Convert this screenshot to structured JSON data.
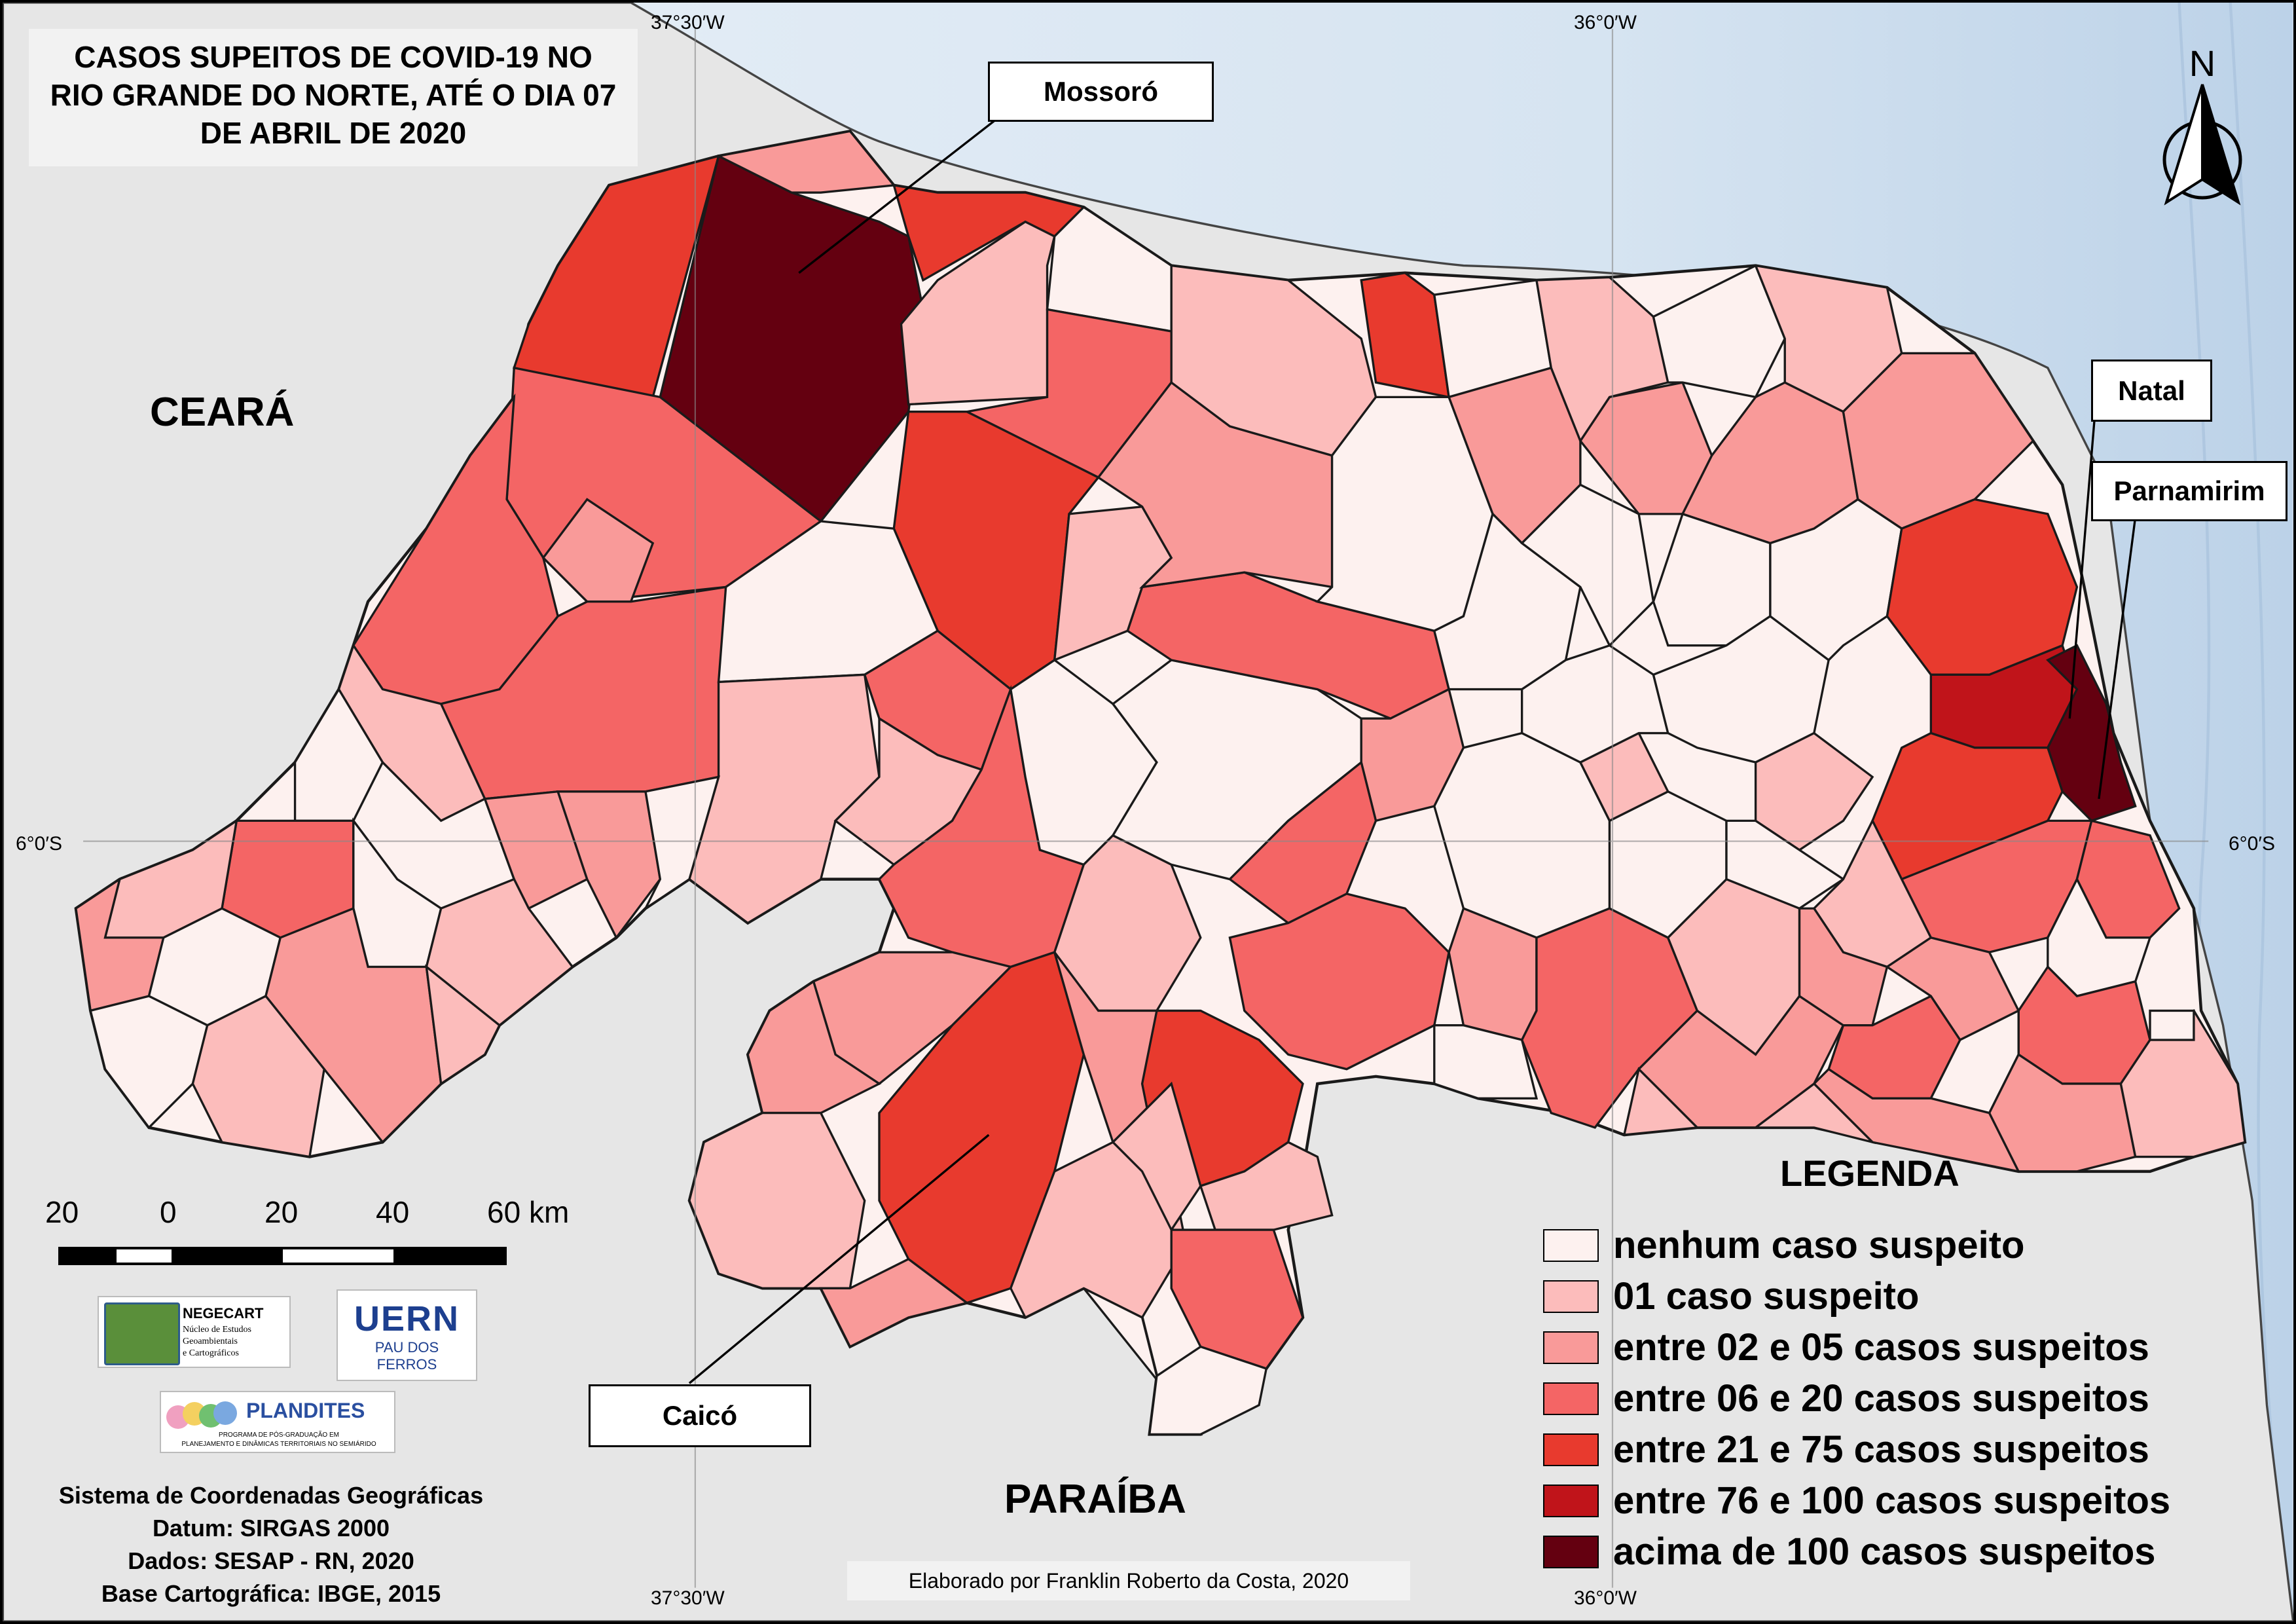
{
  "title": "CASOS SUPEITOS DE COVID-19 NO RIO GRANDE DO NORTE, ATÉ O DIA 07 DE ABRIL DE 2020",
  "title_lines": [
    "CASOS SUPEITOS DE COVID-19 NO",
    "RIO GRANDE DO NORTE, ATÉ O DIA 07",
    "DE ABRIL DE 2020"
  ],
  "region_labels": {
    "ceara": "CEARÁ",
    "paraiba": "PARAÍBA"
  },
  "city_callouts": {
    "mossoro": "Mossoró",
    "natal": "Natal",
    "parnamirim": "Parnamirim",
    "caico": "Caicó"
  },
  "coordinates": {
    "top_left": "37°30′W",
    "top_right": "36°0′W",
    "left": "6°0′S",
    "right": "6°0′S",
    "bottom_left": "37°30′W",
    "bottom_right": "36°0′W"
  },
  "north_arrow_label": "N",
  "scale_bar": {
    "labels": [
      "20",
      "0",
      "20",
      "40",
      "60 km"
    ]
  },
  "legend": {
    "title": "LEGENDA",
    "items": [
      {
        "label": "nenhum caso suspeito",
        "color": "#fdf1ef"
      },
      {
        "label": "01 caso suspeito",
        "color": "#fcbcbb"
      },
      {
        "label": "entre 02 e 05 casos suspeitos",
        "color": "#f99a99"
      },
      {
        "label": "entre 06 e 20 casos suspeitos",
        "color": "#f46565"
      },
      {
        "label": "entre 21 e 75 casos suspeitos",
        "color": "#e83a2e"
      },
      {
        "label": "entre 76 e 100 casos suspeitos",
        "color": "#c0141a"
      },
      {
        "label": "acima de 100 casos suspeitos",
        "color": "#640010"
      }
    ]
  },
  "logos": {
    "negecart": "NEGECART",
    "negecart_sub": [
      "Núcleo de Estudos",
      "Geoambientais",
      "e Cartográficos"
    ],
    "uern": "UERN",
    "uern_sub": [
      "PAU DOS",
      "FERROS"
    ],
    "plandites": "PLANDITES",
    "plandites_sub": [
      "PROGRAMA DE PÓS-GRADUAÇÃO EM",
      "PLANEJAMENTO E DINÂMICAS TERRITORIAIS NO SEMIÁRIDO"
    ]
  },
  "metadata_lines": [
    "Sistema de Coordenadas Geográficas",
    "Datum: SIRGAS 2000",
    "Dados: SESAP - RN, 2020",
    "Base Cartográfica: IBGE, 2015"
  ],
  "credit": "Elaborado por Franklin Roberto da Costa, 2020",
  "colors": {
    "ocean": "#d9e6f2",
    "neighbor": "#e5e5e5",
    "border": "#1a1a1a"
  }
}
